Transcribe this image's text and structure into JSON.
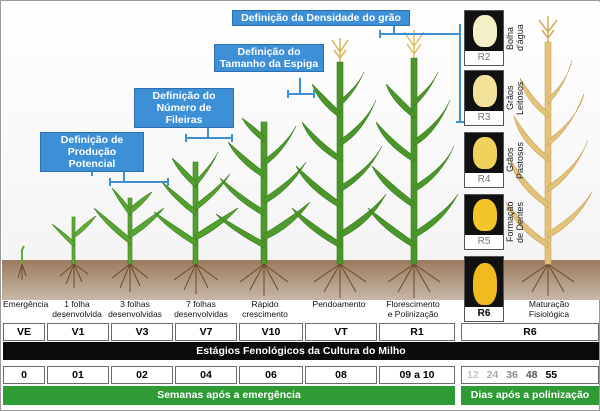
{
  "callouts": {
    "producao": "Definição de\nProdução Potencial",
    "fileiras": "Definição do\nNúmero de Fileiras",
    "espiga": "Definição do\nTamanho da Espiga",
    "densidade": "Definição da Densidade do grão"
  },
  "cards": [
    {
      "code": "R2",
      "label": "Bolha\nd'água",
      "kernel_color": "#f6f0c8"
    },
    {
      "code": "R3",
      "label": "Grãos\nLeitosos",
      "kernel_color": "#f3e39a"
    },
    {
      "code": "R4",
      "label": "Grãos\nPastosos",
      "kernel_color": "#efd25c"
    },
    {
      "code": "R5",
      "label": "Formação\nde Dentes",
      "kernel_color": "#f2c629"
    },
    {
      "code": "R6",
      "label": "",
      "kernel_color": "#f0b91e"
    }
  ],
  "stage_labels": {
    "emergencia": "Emergência",
    "v1": "1 folha\ndesenvolvida",
    "v3": "3 folhas\ndesenvolvidas",
    "v7": "7 folhas\ndesenvolvidas",
    "v10": "Rápido\ncrescimento",
    "vt": "Pendoamento",
    "r1": "Florescimento\ne Polinização",
    "r6": "Maturação\nFisiológica"
  },
  "codes": [
    "VE",
    "V1",
    "V3",
    "V7",
    "V10",
    "VT",
    "R1",
    "R6"
  ],
  "band_title": "Estágios Fenológicos da Cultura do Milho",
  "weeks": [
    "0",
    "01",
    "02",
    "04",
    "06",
    "08",
    "09 a 10"
  ],
  "weeks_label": "Semanas após a emergência",
  "days": [
    "12",
    "24",
    "36",
    "48",
    "55"
  ],
  "days_label": "Dias após a polinização",
  "colors": {
    "callout_blue": "#3d8fd6",
    "green_band": "#2e9b35",
    "soil": "#8a6a4f",
    "plant_green": "#4f9a2c",
    "dry_plant": "#e3c27a"
  }
}
